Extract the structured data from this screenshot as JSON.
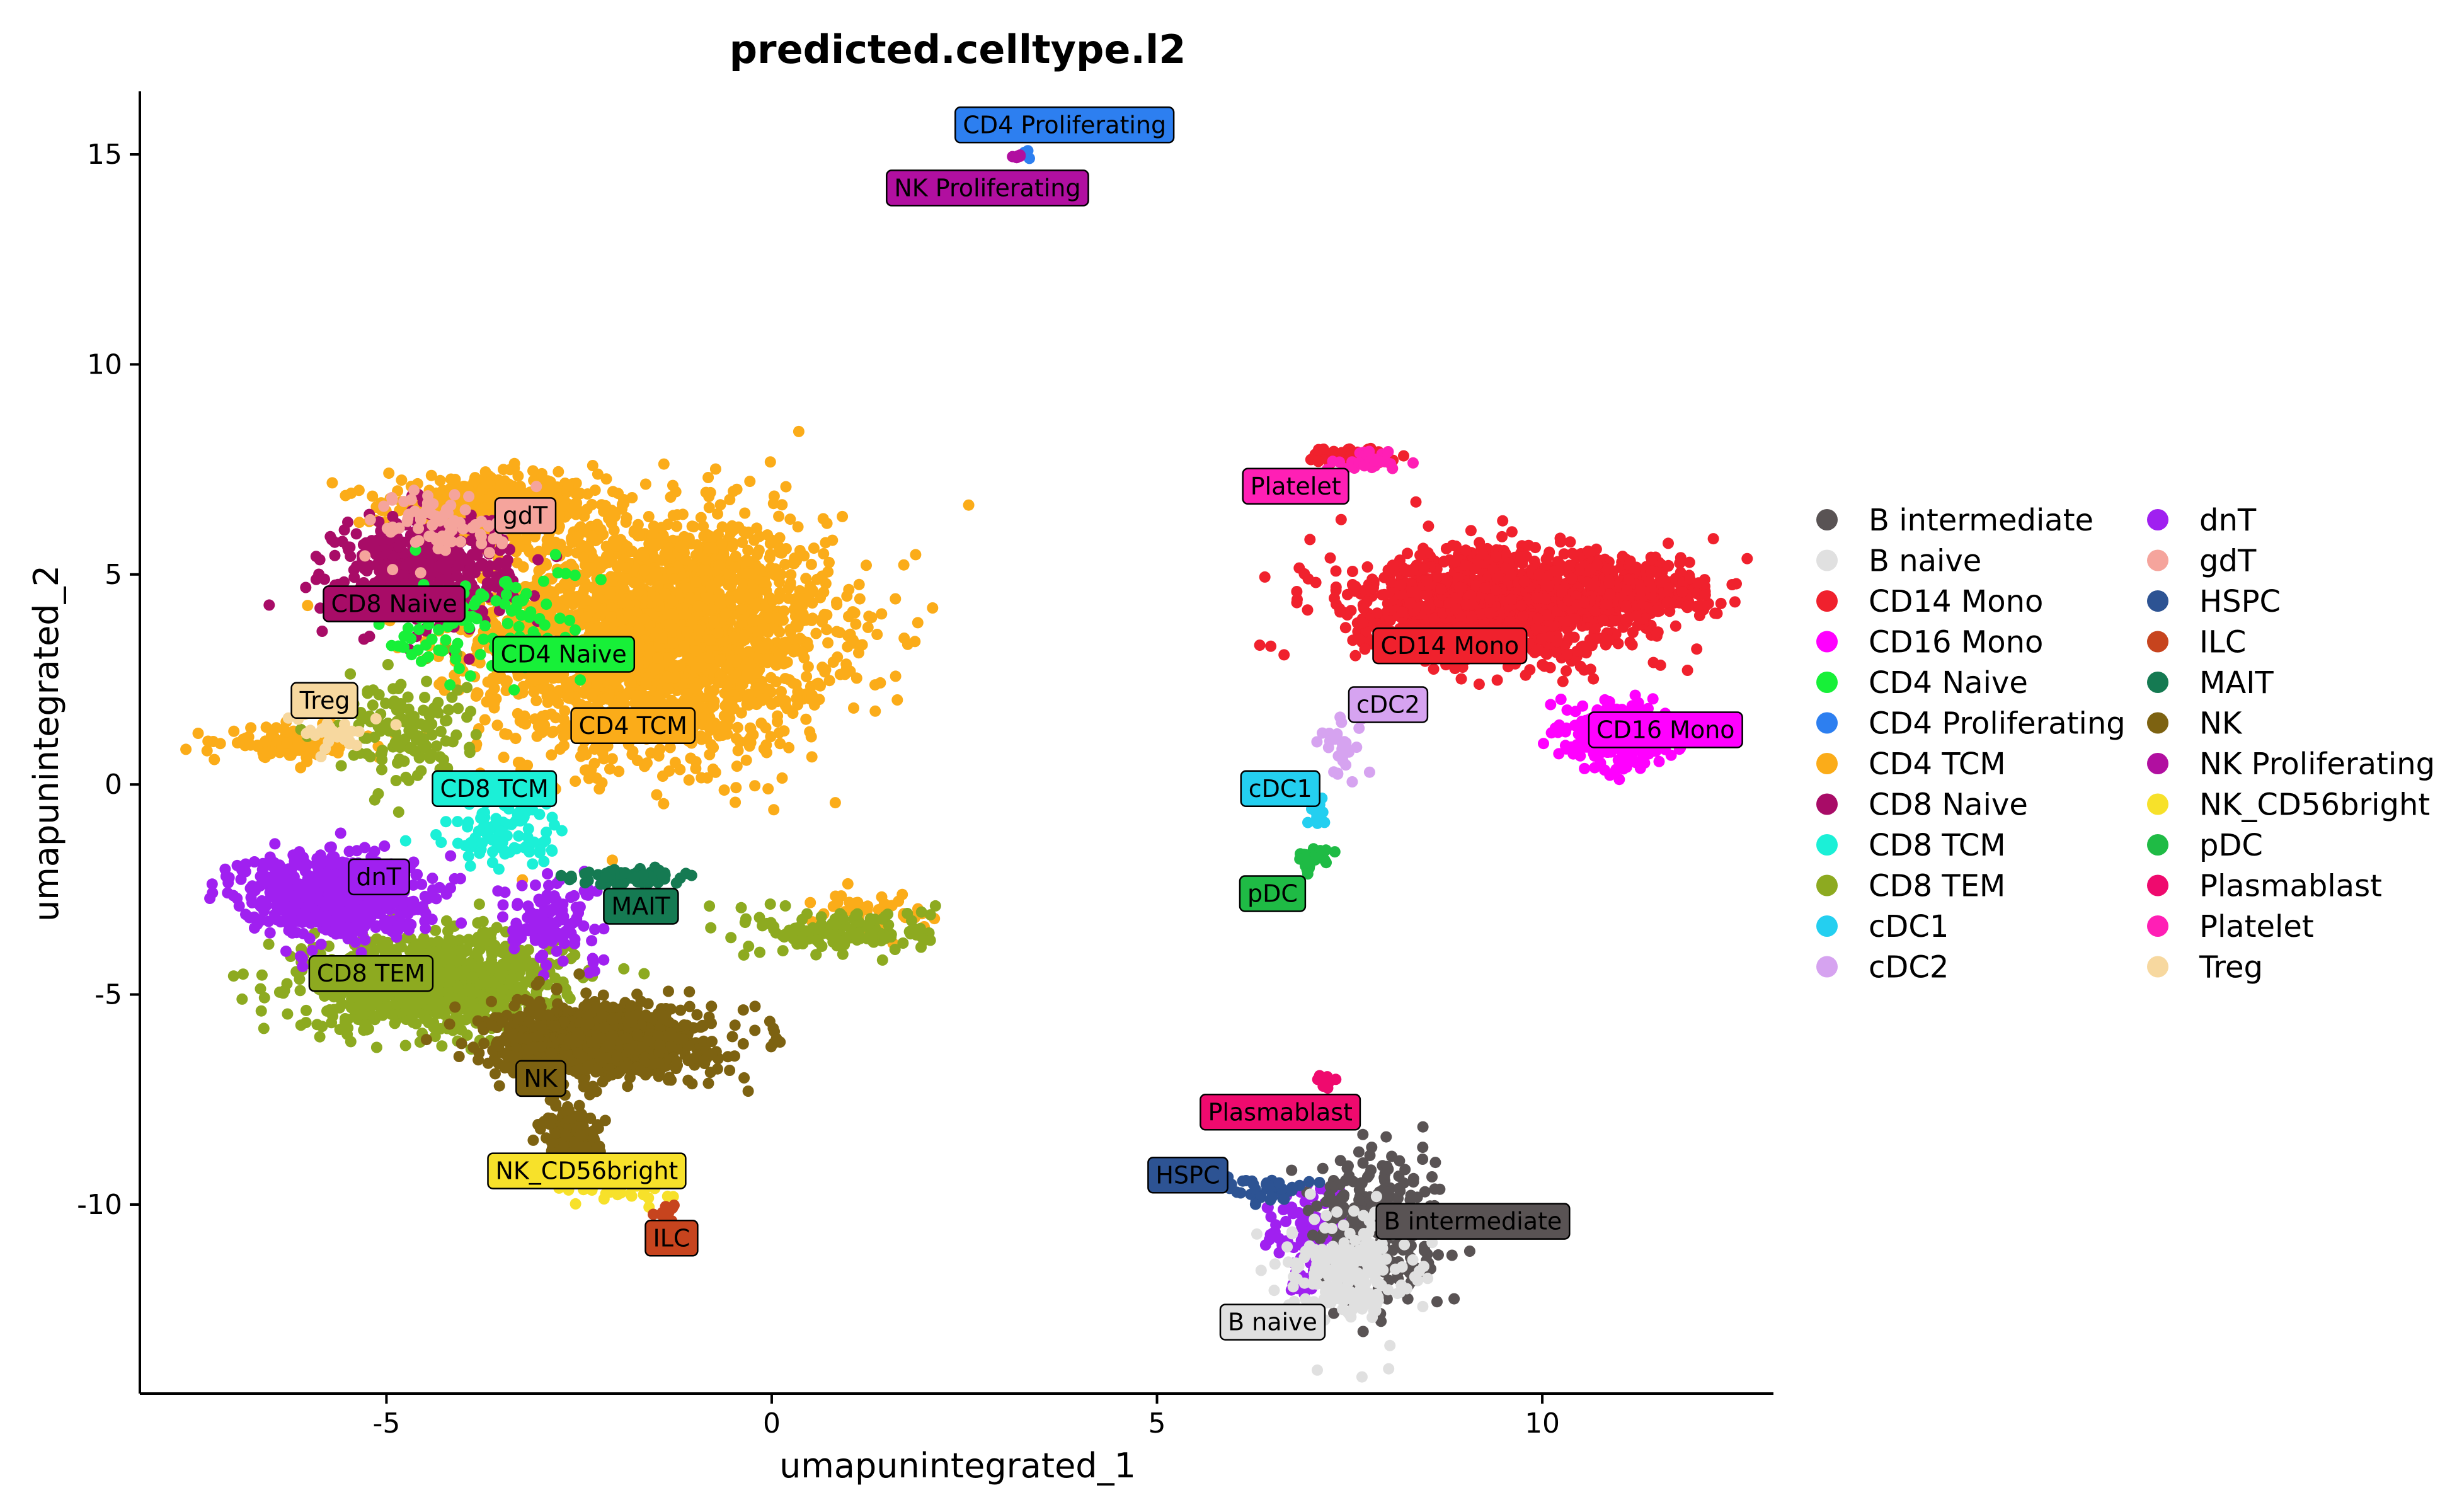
{
  "chart_data": {
    "type": "scatter",
    "title": "predicted.celltype.l2",
    "xlabel": "umapunintegrated_1",
    "ylabel": "umapunintegrated_2",
    "xlim": [
      -8.2,
      13
    ],
    "ylim": [
      -14.5,
      16.5
    ],
    "xticks": [
      -5,
      0,
      5,
      10
    ],
    "yticks": [
      -10,
      -5,
      0,
      5,
      10,
      15
    ],
    "xtick_labels": [
      "-5",
      "0",
      "5",
      "10"
    ],
    "ytick_labels": [
      "-10",
      "-5",
      "0",
      "5",
      "10",
      "15"
    ],
    "grid": false,
    "legend_position": "right",
    "legend_columns": 2,
    "series": [
      {
        "name": "B intermediate",
        "color": "#595354",
        "label_pos": [
          9.1,
          -10.4
        ],
        "clusters": [
          {
            "center": [
              7.9,
              -10.5
            ],
            "spread": [
              0.55,
              1.3
            ],
            "n": 300
          }
        ]
      },
      {
        "name": "B naive",
        "color": "#e0e0e0",
        "label_pos": [
          6.5,
          -12.8
        ],
        "clusters": [
          {
            "center": [
              7.5,
              -11.6
            ],
            "spread": [
              0.55,
              0.9
            ],
            "n": 220
          }
        ]
      },
      {
        "name": "CD14 Mono",
        "color": "#f0212d",
        "label_pos": [
          8.8,
          3.3
        ],
        "clusters": [
          {
            "center": [
              9.5,
              4.3
            ],
            "spread": [
              1.4,
              0.9
            ],
            "n": 1400
          },
          {
            "center": [
              11.3,
              4.6
            ],
            "spread": [
              0.6,
              0.5
            ],
            "n": 250
          },
          {
            "center": [
              7.5,
              7.8
            ],
            "spread": [
              0.35,
              0.15
            ],
            "n": 60
          }
        ]
      },
      {
        "name": "CD16 Mono",
        "color": "#ff00ff",
        "label_pos": [
          11.6,
          1.3
        ],
        "clusters": [
          {
            "center": [
              11.0,
              1.2
            ],
            "spread": [
              0.45,
              0.5
            ],
            "n": 320
          }
        ]
      },
      {
        "name": "CD4 Naive",
        "color": "#17f038",
        "label_pos": [
          -2.7,
          3.1
        ],
        "clusters": [
          {
            "center": [
              -3.7,
              3.8
            ],
            "spread": [
              0.9,
              1.0
            ],
            "n": 120
          }
        ]
      },
      {
        "name": "CD4 Proliferating",
        "color": "#2d7ff0",
        "label_pos": [
          3.8,
          15.7
        ],
        "clusters": [
          {
            "center": [
              3.3,
              15.0
            ],
            "spread": [
              0.06,
              0.06
            ],
            "n": 6
          }
        ]
      },
      {
        "name": "CD4 TCM",
        "color": "#fbac19",
        "label_pos": [
          -1.8,
          1.4
        ],
        "clusters": [
          {
            "center": [
              -1.5,
              3.6
            ],
            "spread": [
              1.6,
              2.0
            ],
            "n": 2600
          },
          {
            "center": [
              -3.6,
              6.6
            ],
            "spread": [
              1.0,
              0.5
            ],
            "n": 500
          },
          {
            "center": [
              -6.2,
              1.0
            ],
            "spread": [
              0.6,
              0.25
            ],
            "n": 130
          },
          {
            "center": [
              1.3,
              -3.1
            ],
            "spread": [
              0.5,
              0.35
            ],
            "n": 60
          }
        ]
      },
      {
        "name": "CD8 Naive",
        "color": "#a80c67",
        "label_pos": [
          -4.9,
          4.3
        ],
        "clusters": [
          {
            "center": [
              -4.5,
              5.2
            ],
            "spread": [
              0.8,
              0.9
            ],
            "n": 450
          }
        ]
      },
      {
        "name": "CD8 TCM",
        "color": "#1bf0d7",
        "label_pos": [
          -3.6,
          -0.1
        ],
        "clusters": [
          {
            "center": [
              -3.5,
              -1.2
            ],
            "spread": [
              0.6,
              0.6
            ],
            "n": 90
          }
        ]
      },
      {
        "name": "CD8 TEM",
        "color": "#8daa20",
        "label_pos": [
          -5.2,
          -4.5
        ],
        "clusters": [
          {
            "center": [
              -4.4,
              -4.7
            ],
            "spread": [
              1.2,
              0.8
            ],
            "n": 900
          },
          {
            "center": [
              -4.8,
              1.3
            ],
            "spread": [
              0.6,
              1.0
            ],
            "n": 140
          },
          {
            "center": [
              1.0,
              -3.5
            ],
            "spread": [
              0.8,
              0.4
            ],
            "n": 160
          }
        ]
      },
      {
        "name": "cDC1",
        "color": "#24cff0",
        "label_pos": [
          6.6,
          -0.1
        ],
        "clusters": [
          {
            "center": [
              7.1,
              -0.6
            ],
            "spread": [
              0.08,
              0.25
            ],
            "n": 16
          }
        ]
      },
      {
        "name": "cDC2",
        "color": "#d6a3f0",
        "label_pos": [
          8.0,
          1.9
        ],
        "clusters": [
          {
            "center": [
              7.4,
              0.8
            ],
            "spread": [
              0.2,
              0.5
            ],
            "n": 30
          }
        ]
      },
      {
        "name": "dnT",
        "color": "#a020f0",
        "label_pos": [
          -5.1,
          -2.2
        ],
        "clusters": [
          {
            "center": [
              -5.7,
              -2.6
            ],
            "spread": [
              0.8,
              0.7
            ],
            "n": 650
          },
          {
            "center": [
              -2.8,
              -3.2
            ],
            "spread": [
              0.6,
              0.8
            ],
            "n": 120
          },
          {
            "center": [
              7.0,
              -10.8
            ],
            "spread": [
              0.4,
              0.9
            ],
            "n": 120
          }
        ]
      },
      {
        "name": "gdT",
        "color": "#f5a49c",
        "label_pos": [
          -3.2,
          6.4
        ],
        "clusters": [
          {
            "center": [
              -4.2,
              6.2
            ],
            "spread": [
              0.7,
              0.6
            ],
            "n": 80
          }
        ]
      },
      {
        "name": "HSPC",
        "color": "#2d5393",
        "label_pos": [
          5.4,
          -9.3
        ],
        "clusters": [
          {
            "center": [
              6.4,
              -9.6
            ],
            "spread": [
              0.4,
              0.25
            ],
            "n": 40
          }
        ]
      },
      {
        "name": "ILC",
        "color": "#c7441e",
        "label_pos": [
          -1.3,
          -10.8
        ],
        "clusters": [
          {
            "center": [
              -1.4,
              -10.2
            ],
            "spread": [
              0.12,
              0.12
            ],
            "n": 14
          }
        ]
      },
      {
        "name": "MAIT",
        "color": "#157a52",
        "label_pos": [
          -1.7,
          -2.9
        ],
        "clusters": [
          {
            "center": [
              -1.8,
              -2.2
            ],
            "spread": [
              0.5,
              0.12
            ],
            "n": 120
          }
        ]
      },
      {
        "name": "NK",
        "color": "#7d6211",
        "label_pos": [
          -3.0,
          -7.0
        ],
        "clusters": [
          {
            "center": [
              -2.2,
              -6.1
            ],
            "spread": [
              1.0,
              0.6
            ],
            "n": 900
          },
          {
            "center": [
              -2.6,
              -8.3
            ],
            "spread": [
              0.25,
              0.5
            ],
            "n": 150
          }
        ]
      },
      {
        "name": "NK Proliferating",
        "color": "#b10fa0",
        "label_pos": [
          2.8,
          14.2
        ],
        "clusters": [
          {
            "center": [
              3.2,
              14.95
            ],
            "spread": [
              0.06,
              0.05
            ],
            "n": 5
          }
        ]
      },
      {
        "name": "NK_CD56bright",
        "color": "#f7e12a",
        "label_pos": [
          -2.4,
          -9.2
        ],
        "clusters": [
          {
            "center": [
              -2.0,
              -9.6
            ],
            "spread": [
              0.5,
              0.3
            ],
            "n": 40
          }
        ]
      },
      {
        "name": "pDC",
        "color": "#1fbb45",
        "label_pos": [
          6.5,
          -2.6
        ],
        "clusters": [
          {
            "center": [
              7.0,
              -1.7
            ],
            "spread": [
              0.15,
              0.2
            ],
            "n": 24
          }
        ]
      },
      {
        "name": "Plasmablast",
        "color": "#ef0a6e",
        "label_pos": [
          6.6,
          -7.8
        ],
        "clusters": [
          {
            "center": [
              7.2,
              -7.0
            ],
            "spread": [
              0.08,
              0.15
            ],
            "n": 8
          }
        ]
      },
      {
        "name": "Platelet",
        "color": "#ff1fb5",
        "label_pos": [
          6.8,
          7.1
        ],
        "clusters": [
          {
            "center": [
              7.8,
              7.7
            ],
            "spread": [
              0.4,
              0.2
            ],
            "n": 30
          }
        ]
      },
      {
        "name": "Treg",
        "color": "#f7d89f",
        "label_pos": [
          -5.8,
          2.0
        ],
        "clusters": [
          {
            "center": [
              -5.6,
              1.2
            ],
            "spread": [
              0.4,
              0.3
            ],
            "n": 30
          }
        ]
      }
    ]
  }
}
